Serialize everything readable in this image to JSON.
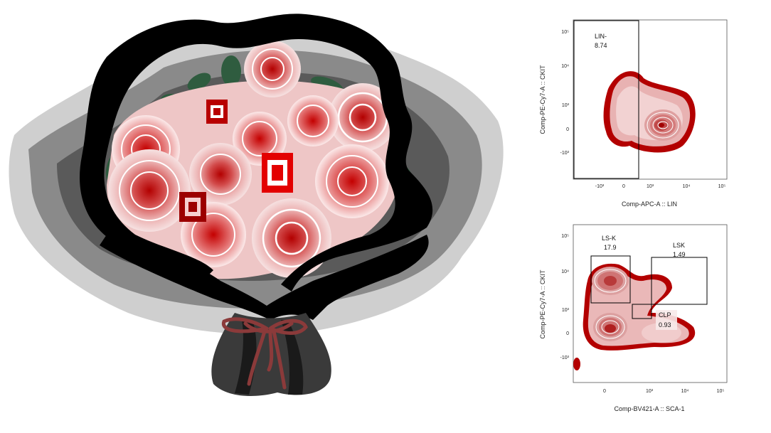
{
  "plot_top": {
    "x_axis_label": "Comp-APC-A :: LIN",
    "y_axis_label": "Comp-PE-Cy7-A :: CKIT",
    "gates": [
      {
        "name": "LIN-",
        "value": "8.74"
      }
    ],
    "x_ticks": [
      "-10³",
      "0",
      "10³",
      "10⁴",
      "10⁵"
    ],
    "y_ticks": [
      "10⁵",
      "10⁴",
      "10³",
      "0",
      "-10³"
    ]
  },
  "plot_bottom": {
    "x_axis_label": "Comp-BV421-A :: SCA-1",
    "y_axis_label": "Comp-PE-Cy7-A :: CKIT",
    "gates": [
      {
        "name": "LS-K",
        "value": "17.9"
      },
      {
        "name": "LSK",
        "value": "1.49"
      },
      {
        "name": "CLP",
        "value": "0.93"
      }
    ],
    "x_ticks": [
      "0",
      "10³",
      "10⁴",
      "10⁵"
    ],
    "y_ticks": [
      "10⁵",
      "10⁴",
      "10³",
      "0",
      "-10³"
    ]
  },
  "colors": {
    "contour_dark": "#b00000",
    "contour_light": "#f3d6d6",
    "wrap_black": "#000000",
    "wrap_gray": "#6a6a6a",
    "wrap_light": "#c9c9c9",
    "leaf": "#2f5c3f",
    "ribbon": "#8b3a3a"
  }
}
